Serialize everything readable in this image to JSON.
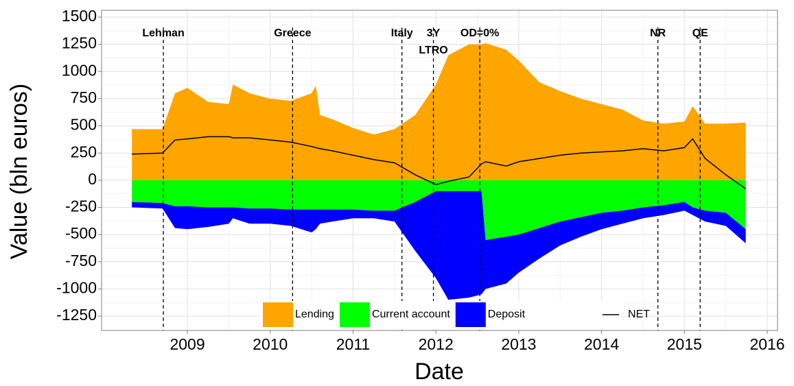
{
  "chart_data": {
    "type": "area",
    "xlabel": "Date",
    "ylabel": "Value (bln euros)",
    "x": [
      2008.33,
      2008.7,
      2008.85,
      2009.0,
      2009.25,
      2009.5,
      2009.55,
      2009.75,
      2010.0,
      2010.25,
      2010.5,
      2010.55,
      2010.6,
      2010.75,
      2011.0,
      2011.25,
      2011.5,
      2011.75,
      2012.0,
      2012.15,
      2012.4,
      2012.55,
      2012.6,
      2012.85,
      2013.0,
      2013.25,
      2013.5,
      2013.75,
      2014.0,
      2014.25,
      2014.5,
      2014.75,
      2015.0,
      2015.1,
      2015.25,
      2015.5,
      2015.74
    ],
    "series": [
      {
        "name": "Lending",
        "color": "#ffa500",
        "kind": "area",
        "stack": "pos",
        "values": [
          470,
          470,
          800,
          850,
          720,
          700,
          880,
          800,
          750,
          730,
          800,
          870,
          600,
          560,
          480,
          420,
          470,
          600,
          880,
          1150,
          1250,
          1250,
          1260,
          1200,
          1100,
          900,
          820,
          750,
          700,
          650,
          550,
          520,
          540,
          680,
          520,
          520,
          530
        ]
      },
      {
        "name": "Current account",
        "color": "#00ff00",
        "kind": "area",
        "stack": "neg",
        "values": [
          -200,
          -210,
          -240,
          -240,
          -250,
          -250,
          -250,
          -260,
          -260,
          -270,
          -270,
          -270,
          -270,
          -270,
          -270,
          -280,
          -280,
          -200,
          -100,
          -100,
          -100,
          -100,
          -550,
          -520,
          -500,
          -440,
          -380,
          -340,
          -300,
          -280,
          -250,
          -230,
          -200,
          -250,
          -280,
          -300,
          -450
        ]
      },
      {
        "name": "Deposit",
        "color": "#0000ff",
        "kind": "area",
        "stack": "neg",
        "values": [
          -50,
          -50,
          -200,
          -210,
          -180,
          -150,
          -100,
          -140,
          -140,
          -150,
          -210,
          -180,
          -130,
          -110,
          -80,
          -70,
          -100,
          -450,
          -800,
          -1000,
          -980,
          -950,
          -450,
          -430,
          -350,
          -280,
          -220,
          -180,
          -150,
          -120,
          -100,
          -90,
          -80,
          -70,
          -100,
          -120,
          -130
        ]
      },
      {
        "name": "NET",
        "color": "#000000",
        "kind": "line",
        "values": [
          240,
          250,
          370,
          380,
          400,
          400,
          390,
          390,
          370,
          350,
          310,
          300,
          290,
          270,
          230,
          190,
          160,
          50,
          -40,
          -10,
          30,
          150,
          170,
          130,
          170,
          200,
          230,
          250,
          260,
          270,
          290,
          270,
          300,
          380,
          200,
          50,
          -80
        ]
      }
    ],
    "annotations": [
      {
        "x": 2008.71,
        "label": [
          "Lehman"
        ]
      },
      {
        "x": 2010.27,
        "label": [
          "Greece"
        ]
      },
      {
        "x": 2011.59,
        "label": [
          "Italy"
        ]
      },
      {
        "x": 2011.97,
        "label": [
          "3Y",
          "LTRO"
        ]
      },
      {
        "x": 2012.53,
        "label": [
          "OD=0%"
        ]
      },
      {
        "x": 2014.68,
        "label": [
          "NR"
        ]
      },
      {
        "x": 2015.19,
        "label": [
          "QE"
        ]
      }
    ],
    "xlim": [
      2007.964,
      2016.124
    ],
    "xticks": [
      2009,
      2010,
      2011,
      2012,
      2013,
      2014,
      2015,
      2016
    ],
    "ylim": [
      -1382,
      1563
    ],
    "yticks": [
      1500,
      1250,
      1000,
      750,
      500,
      250,
      0,
      -250,
      -500,
      -750,
      -1000,
      -1250
    ],
    "grid": true,
    "legend": "bottom"
  }
}
